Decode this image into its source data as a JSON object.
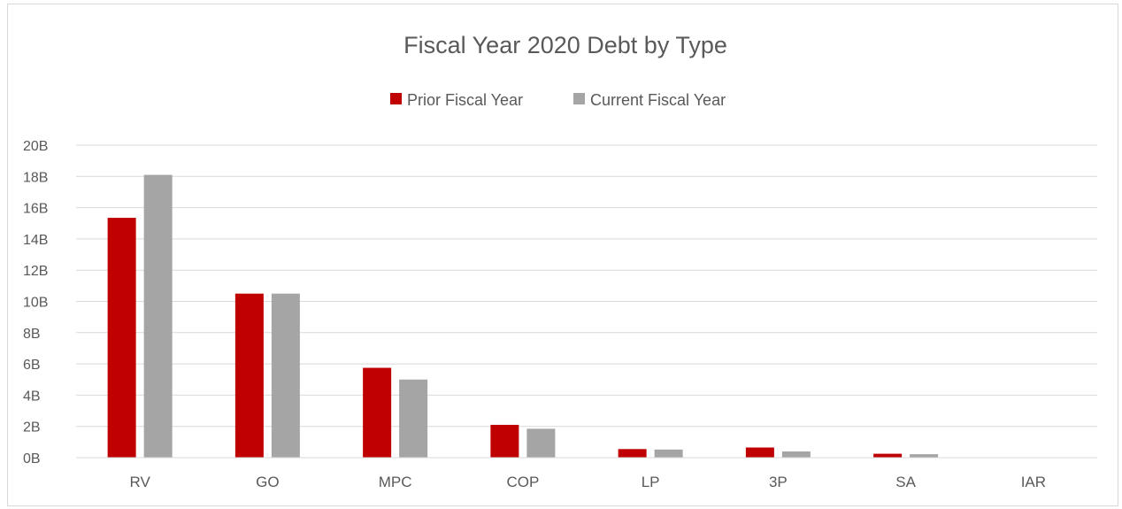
{
  "chart_data": {
    "type": "bar",
    "title": "Fiscal Year 2020 Debt by Type",
    "categories": [
      "RV",
      "GO",
      "MPC",
      "COP",
      "LP",
      "3P",
      "SA",
      "IAR"
    ],
    "series": [
      {
        "name": "Prior Fiscal Year",
        "color": "#c00000",
        "values": [
          15.35,
          10.5,
          5.75,
          2.1,
          0.55,
          0.65,
          0.25,
          0
        ]
      },
      {
        "name": "Current Fiscal Year",
        "color": "#a5a5a5",
        "values": [
          18.1,
          10.5,
          5.0,
          1.85,
          0.52,
          0.4,
          0.22,
          0
        ]
      }
    ],
    "yticks": [
      "0B",
      "2B",
      "4B",
      "6B",
      "8B",
      "10B",
      "12B",
      "14B",
      "16B",
      "18B",
      "20B"
    ],
    "ylim": [
      0,
      20
    ],
    "yunit": "B",
    "xlabel": "",
    "ylabel": "",
    "grid": true,
    "legend_position": "top"
  }
}
